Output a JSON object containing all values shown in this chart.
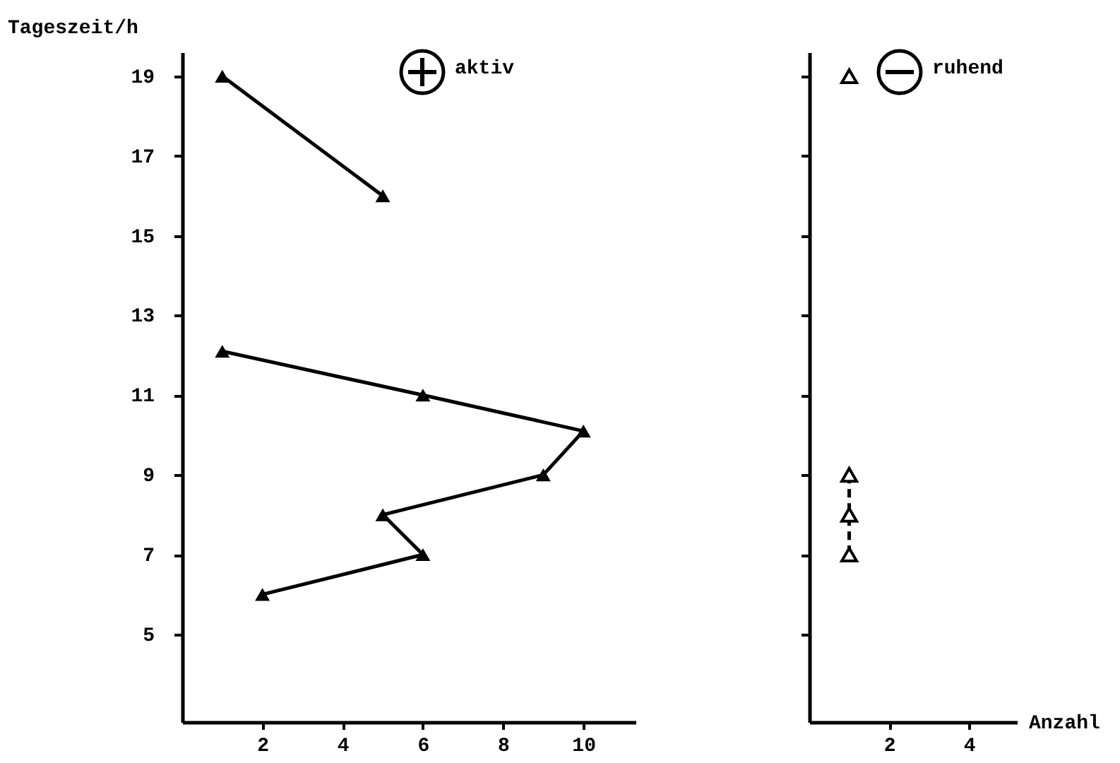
{
  "chart_data": [
    {
      "type": "line",
      "ylabel": "Tageszeit/h",
      "annotations": [
        "aktiv"
      ],
      "xlim": [
        0,
        11.3
      ],
      "xticks": [
        2,
        4,
        6,
        8,
        10
      ],
      "ylim": [
        2.8,
        19.6
      ],
      "yticks": [
        5,
        7,
        9,
        11,
        13,
        15,
        17,
        19
      ],
      "marker": "triangle",
      "line_style": "solid",
      "series": [
        {
          "color": "#000000",
          "x": [
            1,
            5
          ],
          "values": [
            19,
            16
          ]
        },
        {
          "color": "#000000",
          "x": [
            1,
            6,
            10,
            9,
            5,
            6,
            2
          ],
          "values": [
            12.1,
            11,
            10.1,
            9,
            8,
            7,
            6
          ]
        }
      ]
    },
    {
      "type": "line",
      "xlabel": "Anzahl",
      "annotations": [
        "ruhend"
      ],
      "xlim": [
        0,
        5.2
      ],
      "xticks": [
        2,
        4
      ],
      "ylim": [
        2.8,
        19.6
      ],
      "yticks": [
        5,
        7,
        9,
        11,
        13,
        15,
        17,
        19
      ],
      "tick_labels": "x",
      "marker": "triangle",
      "series": [
        {
          "color": "#000000",
          "x": [
            1
          ],
          "values": [
            19
          ]
        },
        {
          "color": "#000000",
          "x": [
            1,
            1,
            1
          ],
          "values": [
            9,
            8,
            7
          ],
          "line_style": "dashed"
        }
      ]
    }
  ]
}
